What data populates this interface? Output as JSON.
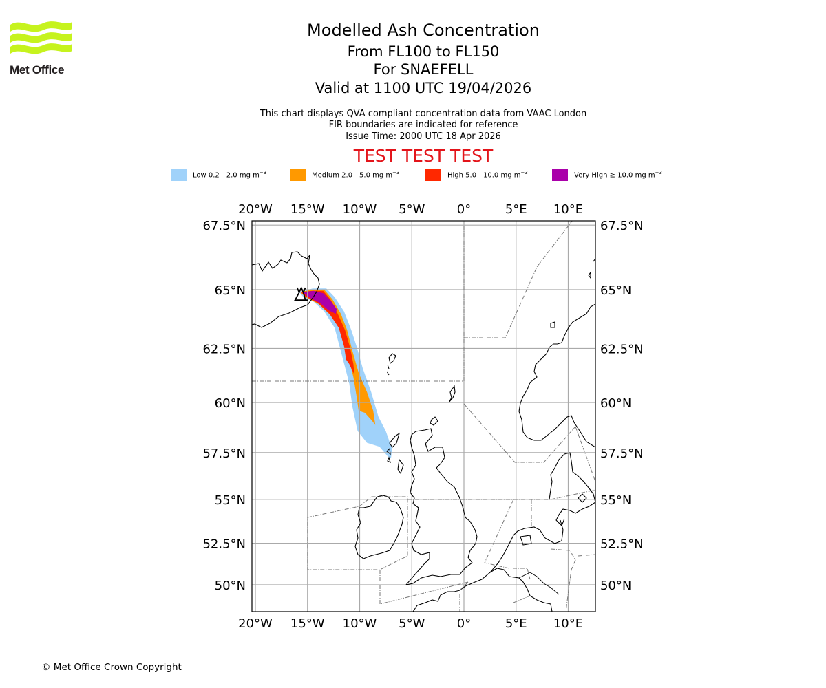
{
  "logo": {
    "name": "met-office-logo",
    "text": "Met Office",
    "color": "#c6f31e"
  },
  "header": {
    "title": "Modelled Ash Concentration",
    "subtitle_levels": "From FL100 to FL150",
    "subtitle_volcano": "For SNAEFELL",
    "subtitle_valid": "Valid at 1100 UTC 19/04/2026",
    "info_line1": "This chart displays QVA compliant concentration data from VAAC London",
    "info_line2": "FIR boundaries are indicated for reference",
    "info_line3": "Issue Time: 2000 UTC 18 Apr 2026",
    "test_banner": "TEST TEST TEST"
  },
  "legend": [
    {
      "label": "Low 0.2 - 2.0 mg m",
      "exp": "−3",
      "color": "#a0d2fa"
    },
    {
      "label": "Medium 2.0 - 5.0 mg m",
      "exp": "−3",
      "color": "#ff9900"
    },
    {
      "label": "High 5.0 - 10.0 mg m",
      "exp": "−3",
      "color": "#ff2800"
    },
    {
      "label": "Very High  ≥  10.0 mg m",
      "exp": "−3",
      "color": "#aa00aa"
    }
  ],
  "chart_data": {
    "type": "map",
    "title": "Modelled Ash Concentration",
    "projection": "mercator",
    "extent": {
      "lon": [
        -20.3,
        12.5
      ],
      "lat": [
        48.7,
        67.6
      ]
    },
    "lon_ticks": [
      -20,
      -15,
      -10,
      -5,
      0,
      5,
      10
    ],
    "lon_tick_labels": [
      "20°W",
      "15°W",
      "10°W",
      "5°W",
      "0°",
      "5°E",
      "10°E"
    ],
    "lat_ticks": [
      67.5,
      65,
      62.5,
      60,
      57.5,
      55,
      52.5,
      50
    ],
    "lat_tick_labels": [
      "67.5°N",
      "65°N",
      "62.5°N",
      "60°N",
      "57.5°N",
      "55°N",
      "52.5°N",
      "50°N"
    ],
    "grid": true,
    "volcano": {
      "name": "SNAEFELL",
      "lon": -15.6,
      "lat": 64.8
    },
    "ash_contours": [
      {
        "level": "Low",
        "color": "#a0d2fa",
        "polygon": [
          [
            -15.8,
            64.9
          ],
          [
            -14.5,
            65.05
          ],
          [
            -13.2,
            65.05
          ],
          [
            -12.4,
            64.7
          ],
          [
            -11.5,
            64.1
          ],
          [
            -10.8,
            63.3
          ],
          [
            -10.3,
            62.6
          ],
          [
            -9.7,
            61.6
          ],
          [
            -8.9,
            60.5
          ],
          [
            -8.2,
            59.3
          ],
          [
            -7.5,
            58.6
          ],
          [
            -6.9,
            57.7
          ],
          [
            -7.0,
            57.2
          ],
          [
            -7.3,
            57.3
          ],
          [
            -8.1,
            57.8
          ],
          [
            -9.3,
            58.0
          ],
          [
            -10.2,
            58.6
          ],
          [
            -10.7,
            59.8
          ],
          [
            -11.0,
            60.9
          ],
          [
            -11.7,
            62.2
          ],
          [
            -12.4,
            63.4
          ],
          [
            -13.4,
            64.1
          ],
          [
            -14.4,
            64.5
          ],
          [
            -15.4,
            64.7
          ]
        ]
      },
      {
        "level": "Medium",
        "color": "#ff9900",
        "polygon": [
          [
            -15.7,
            64.9
          ],
          [
            -14.6,
            65.0
          ],
          [
            -13.4,
            65.0
          ],
          [
            -12.6,
            64.6
          ],
          [
            -11.8,
            64.0
          ],
          [
            -11.2,
            63.3
          ],
          [
            -10.7,
            62.4
          ],
          [
            -10.1,
            61.4
          ],
          [
            -9.3,
            60.5
          ],
          [
            -8.7,
            59.6
          ],
          [
            -8.5,
            58.9
          ],
          [
            -8.8,
            59.1
          ],
          [
            -9.5,
            59.5
          ],
          [
            -10.1,
            59.6
          ],
          [
            -10.3,
            60.3
          ],
          [
            -10.6,
            61.2
          ],
          [
            -11.2,
            62.3
          ],
          [
            -11.8,
            63.3
          ],
          [
            -12.7,
            63.9
          ],
          [
            -13.9,
            64.4
          ],
          [
            -15.2,
            64.7
          ]
        ]
      },
      {
        "level": "High",
        "color": "#ff2800",
        "polygon": [
          [
            -15.6,
            64.9
          ],
          [
            -14.6,
            64.95
          ],
          [
            -13.5,
            64.95
          ],
          [
            -12.8,
            64.6
          ],
          [
            -12.1,
            64.0
          ],
          [
            -11.4,
            63.3
          ],
          [
            -10.9,
            62.5
          ],
          [
            -10.6,
            61.8
          ],
          [
            -10.5,
            61.3
          ],
          [
            -11.0,
            61.8
          ],
          [
            -11.3,
            62.0
          ],
          [
            -11.5,
            62.6
          ],
          [
            -12.0,
            63.4
          ],
          [
            -12.9,
            64.0
          ],
          [
            -14.0,
            64.45
          ],
          [
            -15.3,
            64.75
          ]
        ]
      },
      {
        "level": "Very High",
        "color": "#aa00aa",
        "polygon": [
          [
            -15.5,
            64.9
          ],
          [
            -14.4,
            64.95
          ],
          [
            -13.5,
            64.85
          ],
          [
            -12.8,
            64.55
          ],
          [
            -12.2,
            64.2
          ],
          [
            -12.3,
            64.0
          ],
          [
            -13.0,
            64.15
          ],
          [
            -13.8,
            64.45
          ],
          [
            -14.9,
            64.7
          ]
        ]
      }
    ]
  },
  "footer": {
    "copyright": "© Met Office Crown Copyright"
  }
}
